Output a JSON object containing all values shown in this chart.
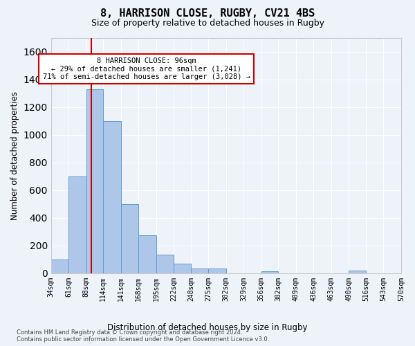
{
  "title": "8, HARRISON CLOSE, RUGBY, CV21 4BS",
  "subtitle": "Size of property relative to detached houses in Rugby",
  "xlabel": "Distribution of detached houses by size in Rugby",
  "ylabel": "Number of detached properties",
  "bar_color": "#aec6e8",
  "bar_edge_color": "#5a9fd4",
  "property_line_x": 96,
  "property_line_color": "#cc0000",
  "annotation_text": "8 HARRISON CLOSE: 96sqm\n← 29% of detached houses are smaller (1,241)\n71% of semi-detached houses are larger (3,028) →",
  "annotation_box_color": "#cc0000",
  "bin_edges": [
    34,
    61,
    88,
    114,
    141,
    168,
    195,
    222,
    248,
    275,
    302,
    329,
    356,
    382,
    409,
    436,
    463,
    490,
    516,
    543,
    570
  ],
  "bar_heights": [
    100,
    700,
    1330,
    1100,
    500,
    275,
    135,
    70,
    35,
    35,
    0,
    0,
    15,
    0,
    0,
    0,
    0,
    20,
    0,
    0
  ],
  "ylim": [
    0,
    1700
  ],
  "yticks": [
    0,
    200,
    400,
    600,
    800,
    1000,
    1200,
    1400,
    1600
  ],
  "footer_text": "Contains HM Land Registry data © Crown copyright and database right 2024.\nContains public sector information licensed under the Open Government Licence v3.0.",
  "background_color": "#eef2f9",
  "grid_color": "#ffffff"
}
